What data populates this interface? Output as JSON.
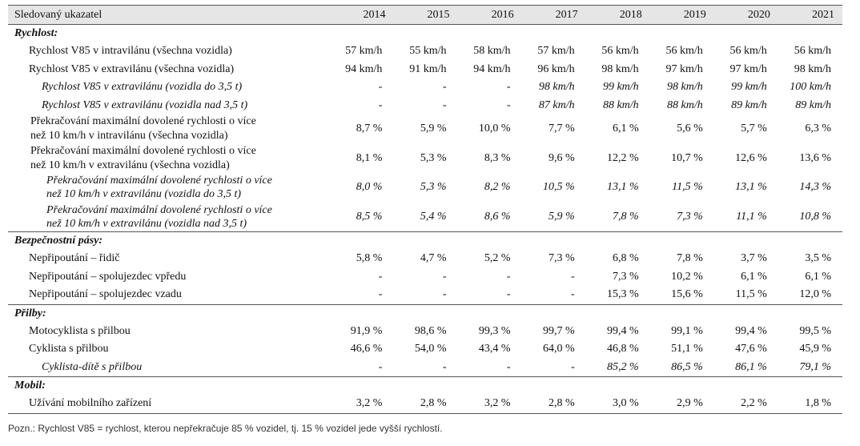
{
  "table": {
    "header_label": "Sledovaný ukazatel",
    "years": [
      "2014",
      "2015",
      "2016",
      "2017",
      "2018",
      "2019",
      "2020",
      "2021"
    ],
    "sections": [
      {
        "title": "Rychlost:",
        "rows": [
          {
            "label": "Rychlost V85 v intravilánu (všechna vozidla)",
            "style": "l1",
            "values": [
              "57 km/h",
              "55 km/h",
              "58 km/h",
              "57 km/h",
              "56 km/h",
              "56 km/h",
              "56 km/h",
              "56 km/h"
            ]
          },
          {
            "label": "Rychlost V85 v extravilánu (všechna vozidla)",
            "style": "l1",
            "values": [
              "94 km/h",
              "91 km/h",
              "94 km/h",
              "96 km/h",
              "98 km/h",
              "97 km/h",
              "97 km/h",
              "98 km/h"
            ]
          },
          {
            "label": "Rychlost V85 v extravilánu (vozidla do 3,5 t)",
            "style": "l2",
            "values": [
              "-",
              "-",
              "-",
              "98 km/h",
              "99 km/h",
              "98 km/h",
              "99 km/h",
              "100 km/h"
            ]
          },
          {
            "label": "Rychlost V85 v extravilánu (vozidla nad 3,5 t)",
            "style": "l2",
            "values": [
              "-",
              "-",
              "-",
              "87 km/h",
              "88 km/h",
              "88 km/h",
              "89 km/h",
              "89 km/h"
            ]
          },
          {
            "label": "Překračování maximální dovolené rychlosti o více než 10 km/h v intravilánu (všechna vozidla)",
            "line1": "Překračování maximální dovolené rychlosti o více",
            "line2": "než 10 km/h v intravilánu (všechna vozidla)",
            "style": "l1d",
            "values": [
              "8,7 %",
              "5,9 %",
              "10,0 %",
              "7,7 %",
              "6,1 %",
              "5,6 %",
              "5,7 %",
              "6,3 %"
            ]
          },
          {
            "label": "Překračování maximální dovolené rychlosti o více než 10 km/h v extravilánu (všechna vozidla)",
            "line1": "Překračování maximální dovolené rychlosti o více",
            "line2": "než 10 km/h v extravilánu (všechna vozidla)",
            "style": "l1d",
            "values": [
              "8,1 %",
              "5,3 %",
              "8,3 %",
              "9,6 %",
              "12,2 %",
              "10,7 %",
              "12,6 %",
              "13,6 %"
            ]
          },
          {
            "label": "Překračování maximální dovolené rychlosti o více než 10 km/h v extravilánu (vozidla do 3,5 t)",
            "line1": "Překračování maximální dovolené rychlosti o více",
            "line2": "než 10 km/h v extravilánu (vozidla do 3,5 t)",
            "style": "l3",
            "values": [
              "8,0 %",
              "5,3 %",
              "8,2 %",
              "10,5 %",
              "13,1 %",
              "11,5 %",
              "13,1 %",
              "14,3 %"
            ]
          },
          {
            "label": "Překračování maximální dovolené rychlosti o více než 10 km/h v extravilánu (vozidla nad 3,5 t)",
            "line1": "Překračování maximální dovolené rychlosti o více",
            "line2": "než 10 km/h v extravilánu (vozidla nad 3,5 t)",
            "style": "l3",
            "values": [
              "8,5 %",
              "5,4 %",
              "8,6 %",
              "5,9 %",
              "7,8 %",
              "7,3 %",
              "11,1 %",
              "10,8 %"
            ]
          }
        ]
      },
      {
        "title": "Bezpečnostní pásy:",
        "rows": [
          {
            "label": "Nepřipoutání – řidič",
            "style": "l1",
            "values": [
              "5,8 %",
              "4,7 %",
              "5,2 %",
              "7,3 %",
              "6,8 %",
              "7,8 %",
              "3,7 %",
              "3,5 %"
            ]
          },
          {
            "label": "Nepřipoutání – spolujezdec vpředu",
            "style": "l1",
            "values": [
              "-",
              "-",
              "-",
              "-",
              "7,3 %",
              "10,2 %",
              "6,1 %",
              "6,1 %"
            ]
          },
          {
            "label": "Nepřipoutání – spolujezdec vzadu",
            "style": "l1",
            "values": [
              "-",
              "-",
              "-",
              "-",
              "15,3 %",
              "15,6 %",
              "11,5 %",
              "12,0 %"
            ]
          }
        ]
      },
      {
        "title": "Přilby:",
        "rows": [
          {
            "label": "Motocyklista s přilbou",
            "style": "l1",
            "values": [
              "91,9 %",
              "98,6 %",
              "99,3 %",
              "99,7 %",
              "99,4 %",
              "99,1 %",
              "99,4 %",
              "99,5 %"
            ]
          },
          {
            "label": "Cyklista s přilbou",
            "style": "l1",
            "values": [
              "46,6 %",
              "54,0 %",
              "43,4 %",
              "64,0 %",
              "46,8 %",
              "51,1 %",
              "47,6 %",
              "45,9 %"
            ]
          },
          {
            "label": "Cyklista-dítě s přilbou",
            "style": "l2",
            "values": [
              "-",
              "-",
              "-",
              "-",
              "85,2 %",
              "86,5 %",
              "86,1 %",
              "79,1 %"
            ]
          }
        ]
      },
      {
        "title": "Mobil:",
        "rows": [
          {
            "label": "Užívání mobilního zařízení",
            "style": "l1",
            "values": [
              "3,2 %",
              "2,8 %",
              "3,2 %",
              "2,8 %",
              "3,0 %",
              "2,9 %",
              "2,2 %",
              "1,8 %"
            ]
          }
        ]
      }
    ]
  },
  "note": "Pozn.: Rychlost V85 = rychlost, kterou nepřekračuje 85 % vozidel, tj. 15 % vozidel jede vyšší rychlostí."
}
